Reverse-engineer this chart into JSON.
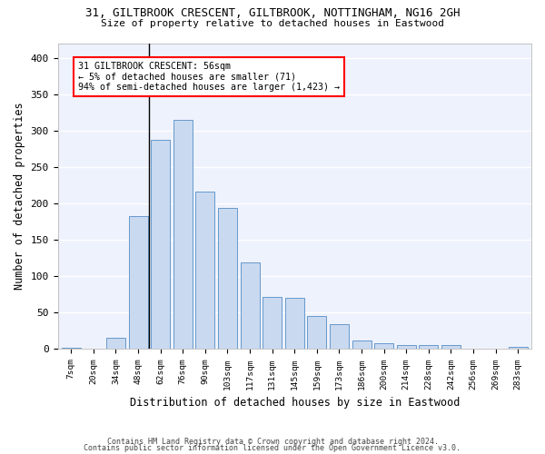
{
  "title1": "31, GILTBROOK CRESCENT, GILTBROOK, NOTTINGHAM, NG16 2GH",
  "title2": "Size of property relative to detached houses in Eastwood",
  "xlabel": "Distribution of detached houses by size in Eastwood",
  "ylabel": "Number of detached properties",
  "categories": [
    "7sqm",
    "20sqm",
    "34sqm",
    "48sqm",
    "62sqm",
    "76sqm",
    "90sqm",
    "103sqm",
    "117sqm",
    "131sqm",
    "145sqm",
    "159sqm",
    "173sqm",
    "186sqm",
    "200sqm",
    "214sqm",
    "228sqm",
    "242sqm",
    "256sqm",
    "269sqm",
    "283sqm"
  ],
  "values": [
    2,
    0,
    15,
    183,
    287,
    315,
    216,
    194,
    119,
    71,
    70,
    46,
    34,
    12,
    8,
    6,
    5,
    6,
    1,
    1,
    3
  ],
  "bar_color": "#c9d9f0",
  "bar_edge_color": "#6699cc",
  "bg_color": "#eef2fc",
  "grid_color": "#ffffff",
  "ann_line1": "31 GILTBROOK CRESCENT: 56sqm",
  "ann_line2": "← 5% of detached houses are smaller (71)",
  "ann_line3": "94% of semi-detached houses are larger (1,423) →",
  "vline_bar_index": 4,
  "footer1": "Contains HM Land Registry data © Crown copyright and database right 2024.",
  "footer2": "Contains public sector information licensed under the Open Government Licence v3.0.",
  "ylim": [
    0,
    420
  ],
  "yticks": [
    0,
    50,
    100,
    150,
    200,
    250,
    300,
    350,
    400
  ]
}
